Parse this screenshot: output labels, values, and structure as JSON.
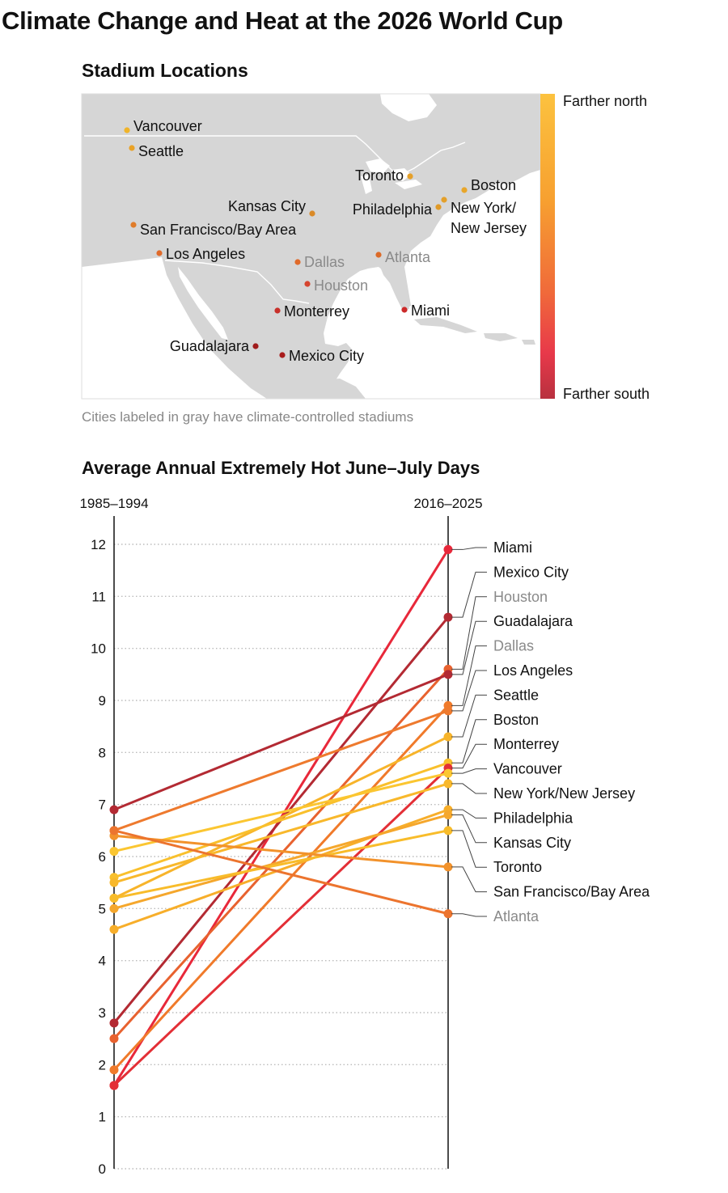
{
  "title": "Climate Change and Heat at the 2026 World Cup",
  "map": {
    "title": "Stadium Locations",
    "note": "Cities labeled in gray have climate-controlled stadiums",
    "legend": {
      "top": "Farther north",
      "bottom": "Farther south"
    },
    "gradient": [
      "#fcc23f",
      "#f7a030",
      "#f06a3a",
      "#e8394a",
      "#b8313f"
    ],
    "land_color": "#d6d6d6",
    "water_color": "#ffffff",
    "cities": [
      {
        "name": "Vancouver",
        "color": "#f0b42a",
        "gray": false
      },
      {
        "name": "Seattle",
        "color": "#e9a227",
        "gray": false
      },
      {
        "name": "Toronto",
        "color": "#e5a02a",
        "gray": false
      },
      {
        "name": "Boston",
        "color": "#e8a62a",
        "gray": false
      },
      {
        "name": "Kansas City",
        "color": "#da8a28",
        "gray": false
      },
      {
        "name": "Philadelphia",
        "color": "#e09a28",
        "gray": false
      },
      {
        "name": "New York/\nNew Jersey",
        "color": "#e4a02a",
        "gray": false
      },
      {
        "name": "San Francisco/Bay Area",
        "color": "#e07c2a",
        "gray": false
      },
      {
        "name": "Los Angeles",
        "color": "#e06a2a",
        "gray": false
      },
      {
        "name": "Dallas",
        "color": "#e06a2a",
        "gray": true
      },
      {
        "name": "Atlanta",
        "color": "#dc6a28",
        "gray": true
      },
      {
        "name": "Houston",
        "color": "#d6452f",
        "gray": true
      },
      {
        "name": "Monterrey",
        "color": "#c8302a",
        "gray": false
      },
      {
        "name": "Miami",
        "color": "#cc2a2a",
        "gray": false
      },
      {
        "name": "Guadalajara",
        "color": "#a01c1c",
        "gray": false
      },
      {
        "name": "Mexico City",
        "color": "#a81c1c",
        "gray": false
      }
    ]
  },
  "chart_data": {
    "type": "line",
    "title": "Average Annual Extremely Hot June–July Days",
    "x": [
      "1985–1994",
      "2016–2025"
    ],
    "ylim": [
      0,
      12
    ],
    "yticks": [
      "0",
      "1",
      "2",
      "3",
      "4",
      "5",
      "6",
      "7",
      "8",
      "9",
      "10",
      "11",
      "12"
    ],
    "grid": true,
    "series": [
      {
        "name": "Miami",
        "values": [
          1.6,
          11.9
        ],
        "color": "#e8283a",
        "gray": false
      },
      {
        "name": "Mexico City",
        "values": [
          2.8,
          10.6
        ],
        "color": "#b32a33",
        "gray": false
      },
      {
        "name": "Houston",
        "values": [
          2.5,
          9.6
        ],
        "color": "#e8622f",
        "gray": true
      },
      {
        "name": "Guadalajara",
        "values": [
          6.9,
          9.5
        ],
        "color": "#b32a33",
        "gray": false
      },
      {
        "name": "Dallas",
        "values": [
          1.9,
          8.9
        ],
        "color": "#f07a2a",
        "gray": true
      },
      {
        "name": "Los Angeles",
        "values": [
          6.5,
          8.8
        ],
        "color": "#ee7a2e",
        "gray": false
      },
      {
        "name": "Seattle",
        "values": [
          5.2,
          8.3
        ],
        "color": "#f7b42a",
        "gray": false
      },
      {
        "name": "Boston",
        "values": [
          5.6,
          7.8
        ],
        "color": "#f9c02c",
        "gray": false
      },
      {
        "name": "Monterrey",
        "values": [
          1.6,
          7.7
        ],
        "color": "#e32f36",
        "gray": false
      },
      {
        "name": "Vancouver",
        "values": [
          6.1,
          7.6
        ],
        "color": "#fbc631",
        "gray": false
      },
      {
        "name": "New York/New Jersey",
        "values": [
          5.5,
          7.4
        ],
        "color": "#f8b82b",
        "gray": false
      },
      {
        "name": "Philadelphia",
        "values": [
          4.6,
          6.9
        ],
        "color": "#f7ae2a",
        "gray": false
      },
      {
        "name": "Kansas City",
        "values": [
          5.0,
          6.8
        ],
        "color": "#f5a72c",
        "gray": false
      },
      {
        "name": "Toronto",
        "values": [
          5.2,
          6.5
        ],
        "color": "#f8bc2a",
        "gray": false
      },
      {
        "name": "San Francisco/Bay Area",
        "values": [
          6.4,
          5.8
        ],
        "color": "#f2922b",
        "gray": false
      },
      {
        "name": "Atlanta",
        "values": [
          6.5,
          4.9
        ],
        "color": "#ec742e",
        "gray": true
      }
    ]
  }
}
